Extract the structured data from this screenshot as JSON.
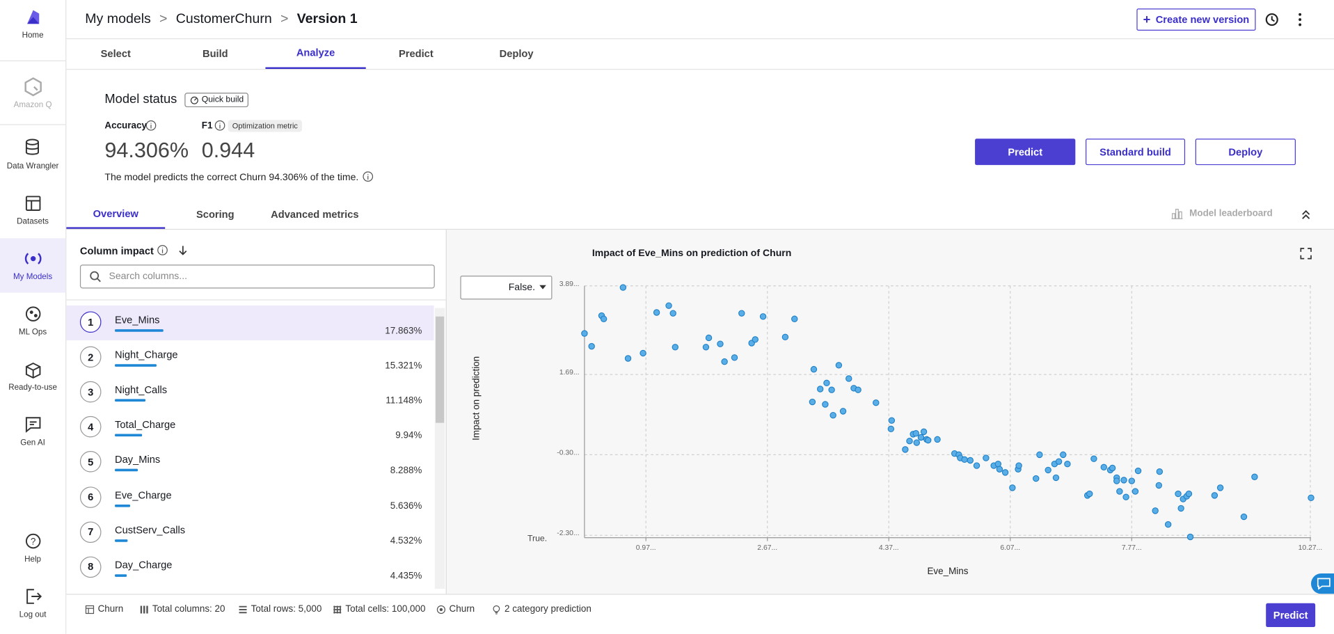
{
  "sidebar": {
    "items": [
      "Home",
      "Amazon Q",
      "Data Wrangler",
      "Datasets",
      "My Models",
      "ML Ops",
      "Ready-to-use",
      "Gen AI"
    ],
    "bottom": [
      "Help",
      "Log out"
    ]
  },
  "header": {
    "breadcrumb": [
      "My models",
      "CustomerChurn",
      "Version 1"
    ],
    "create_button": "Create new version"
  },
  "tabs": [
    "Select",
    "Build",
    "Analyze",
    "Predict",
    "Deploy"
  ],
  "status": {
    "title": "Model status",
    "badge": "Quick build",
    "accuracy_label": "Accuracy",
    "f1_label": "F1",
    "f1_badge": "Optimization metric",
    "accuracy": "94.306%",
    "f1": "0.944",
    "description": "The model predicts the correct Churn 94.306% of the time.",
    "buttons": [
      "Predict",
      "Standard build",
      "Deploy"
    ]
  },
  "subtabs": [
    "Overview",
    "Scoring",
    "Advanced metrics"
  ],
  "leaderboard": "Model leaderboard",
  "column_impact": {
    "title": "Column impact",
    "search_placeholder": "Search columns...",
    "rows": [
      {
        "rank": "1",
        "name": "Eve_Mins",
        "value": 17.863,
        "label": "17.863%"
      },
      {
        "rank": "2",
        "name": "Night_Charge",
        "value": 15.321,
        "label": "15.321%"
      },
      {
        "rank": "3",
        "name": "Night_Calls",
        "value": 11.148,
        "label": "11.148%"
      },
      {
        "rank": "4",
        "name": "Total_Charge",
        "value": 9.94,
        "label": "9.94%"
      },
      {
        "rank": "5",
        "name": "Day_Mins",
        "value": 8.288,
        "label": "8.288%"
      },
      {
        "rank": "6",
        "name": "Eve_Charge",
        "value": 5.636,
        "label": "5.636%"
      },
      {
        "rank": "7",
        "name": "CustServ_Calls",
        "value": 4.532,
        "label": "4.532%"
      },
      {
        "rank": "8",
        "name": "Day_Charge",
        "value": 4.435,
        "label": "4.435%"
      }
    ]
  },
  "chart_data": {
    "type": "scatter",
    "title": "Impact of Eve_Mins on prediction of Churn",
    "x_label": "Eve_Mins",
    "y_label": "Impact on prediction",
    "dropdown": "False.",
    "bottom_class": "True.",
    "color": "#5aaee8",
    "xlim": [
      0.11,
      10.28
    ],
    "ylim": [
      -2.36,
      3.89
    ],
    "xticks": [
      {
        "value": 0.97,
        "label": "0.97..."
      },
      {
        "value": 2.67,
        "label": "2.67..."
      },
      {
        "value": 4.37,
        "label": "4.37..."
      },
      {
        "value": 6.07,
        "label": "6.07..."
      },
      {
        "value": 7.77,
        "label": "7.77..."
      },
      {
        "value": 10.27,
        "label": "10.27..."
      }
    ],
    "yticks": [
      {
        "value": 3.89,
        "label": "3.89..."
      },
      {
        "value": 1.69,
        "label": "1.69..."
      },
      {
        "value": -0.3,
        "label": "-0.30..."
      },
      {
        "value": -2.3,
        "label": "-2.30..."
      }
    ],
    "grid": true,
    "x": [
      0.11,
      0.21,
      0.35,
      0.38,
      0.65,
      0.72,
      0.93,
      1.12,
      1.29,
      1.35,
      1.38,
      1.81,
      1.85,
      2.01,
      2.07,
      2.21,
      2.31,
      2.45,
      2.5,
      2.61,
      2.92,
      3.05,
      3.3,
      3.32,
      3.41,
      3.48,
      3.5,
      3.57,
      3.59,
      3.67,
      3.73,
      3.81,
      3.88,
      3.94,
      4.19,
      4.41,
      4.4,
      4.6,
      4.66,
      4.71,
      4.75,
      4.76,
      4.82,
      4.86,
      4.9,
      4.92,
      5.05,
      5.29,
      5.35,
      5.37,
      5.43,
      5.51,
      5.6,
      5.73,
      5.84,
      5.9,
      5.92,
      6.0,
      6.1,
      6.18,
      6.19,
      6.43,
      6.48,
      6.6,
      6.69,
      6.71,
      6.75,
      6.81,
      6.87,
      7.15,
      7.18,
      7.24,
      7.38,
      7.47,
      7.5,
      7.56,
      7.56,
      7.6,
      7.66,
      7.69,
      7.77,
      7.82,
      7.86,
      8.1,
      8.15,
      8.16,
      8.28,
      8.42,
      8.46,
      8.49,
      8.54,
      8.57,
      8.59,
      8.93,
      9.01,
      9.34,
      9.49,
      10.28
    ],
    "values": [
      2.71,
      2.39,
      3.15,
      3.07,
      3.85,
      2.09,
      2.22,
      3.23,
      3.4,
      3.21,
      2.37,
      2.37,
      2.6,
      2.45,
      2.01,
      2.11,
      3.21,
      2.47,
      2.56,
      3.13,
      2.62,
      3.07,
      1.01,
      1.82,
      1.33,
      0.95,
      1.48,
      1.31,
      0.68,
      1.92,
      0.78,
      1.59,
      1.35,
      1.31,
      0.99,
      0.55,
      0.34,
      -0.17,
      0.04,
      0.21,
      0.23,
      0.0,
      0.13,
      0.27,
      0.08,
      0.06,
      0.08,
      -0.27,
      -0.3,
      -0.38,
      -0.42,
      -0.44,
      -0.57,
      -0.38,
      -0.57,
      -0.53,
      -0.66,
      -0.74,
      -1.12,
      -0.66,
      -0.57,
      -0.89,
      -0.3,
      -0.68,
      -0.53,
      -0.87,
      -0.47,
      -0.3,
      -0.53,
      -1.31,
      -1.27,
      -0.4,
      -0.61,
      -0.68,
      -0.63,
      -0.87,
      -0.95,
      -1.21,
      -0.93,
      -1.35,
      -0.95,
      -1.21,
      -0.7,
      -1.69,
      -1.06,
      -0.72,
      -2.03,
      -1.27,
      -1.63,
      -1.4,
      -1.33,
      -1.27,
      -2.34,
      -1.31,
      -1.12,
      -1.84,
      -0.85,
      -1.37
    ]
  },
  "footer": {
    "items": [
      "Churn",
      "Total columns: 20",
      "Total rows: 5,000",
      "Total cells: 100,000",
      "Churn",
      "2 category prediction"
    ],
    "button": "Predict"
  }
}
